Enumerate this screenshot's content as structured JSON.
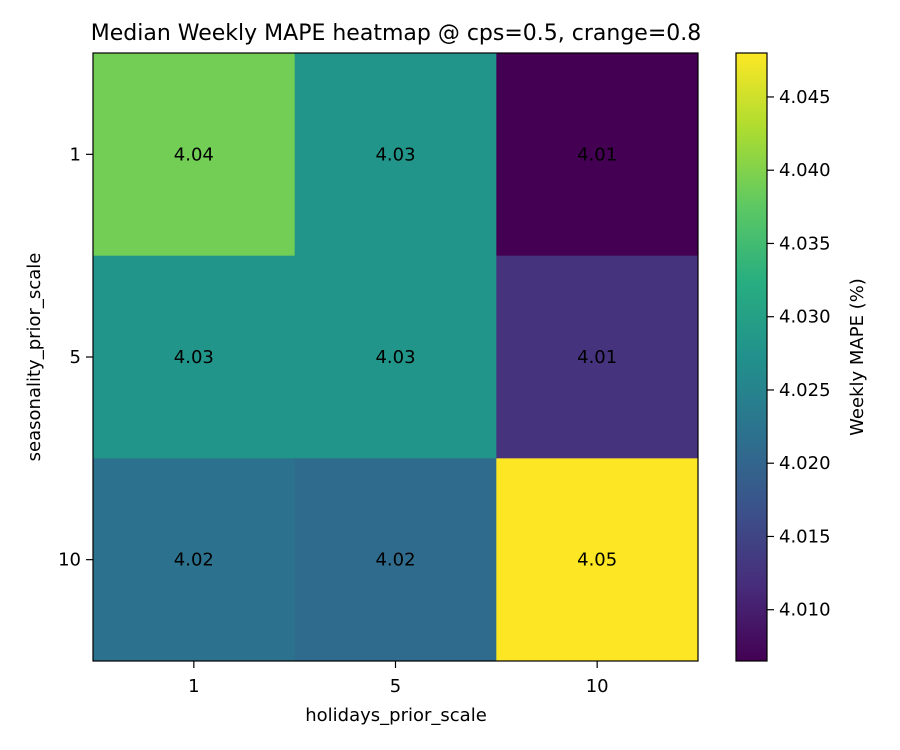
{
  "chart_data": {
    "type": "heatmap",
    "title": "Median Weekly MAPE heatmap @ cps=0.5, crange=0.8",
    "xlabel": "holidays_prior_scale",
    "ylabel": "seasonality_prior_scale",
    "x_categories": [
      "1",
      "5",
      "10"
    ],
    "y_categories": [
      "1",
      "5",
      "10"
    ],
    "values": [
      [
        4.039,
        4.028,
        4.0065
      ],
      [
        4.028,
        4.028,
        4.0125
      ],
      [
        4.022,
        4.021,
        4.048
      ]
    ],
    "cell_labels": [
      [
        "4.04",
        "4.03",
        "4.01"
      ],
      [
        "4.03",
        "4.03",
        "4.01"
      ],
      [
        "4.02",
        "4.02",
        "4.05"
      ]
    ],
    "colorbar": {
      "label": "Weekly MAPE (%)",
      "range": [
        4.0065,
        4.048
      ],
      "ticks": [
        4.01,
        4.015,
        4.02,
        4.025,
        4.03,
        4.035,
        4.04,
        4.045
      ],
      "tick_labels": [
        "4.010",
        "4.015",
        "4.020",
        "4.025",
        "4.030",
        "4.035",
        "4.040",
        "4.045"
      ],
      "colormap": "viridis"
    }
  }
}
